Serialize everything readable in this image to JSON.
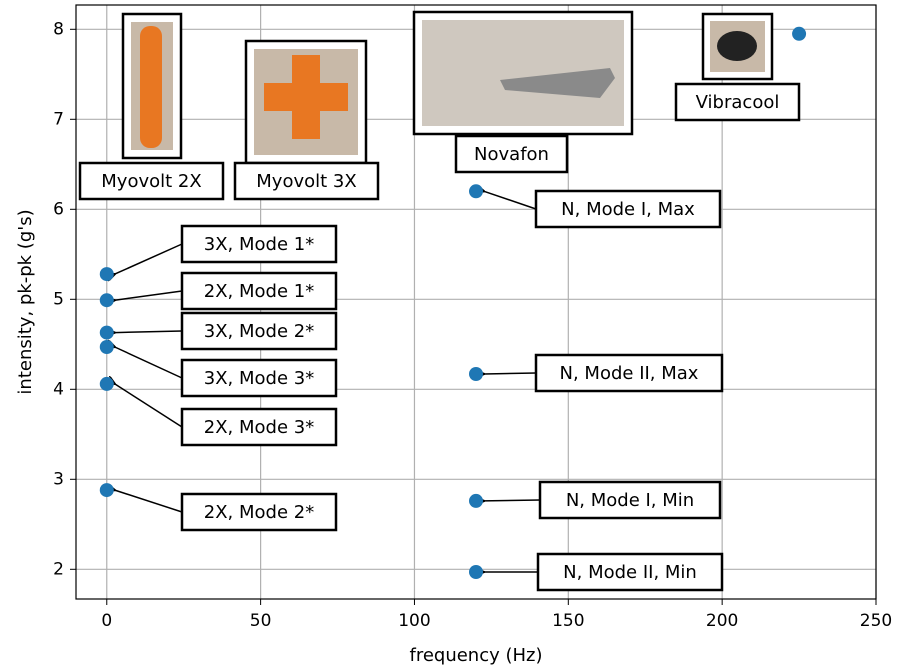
{
  "chart_data": {
    "type": "scatter",
    "x_label": "frequency (Hz)",
    "y_label": "intensity, pk-pk (g's)",
    "xlim": [
      -10,
      250
    ],
    "ylim": [
      1.67,
      8.27
    ],
    "xticks": [
      0,
      50,
      100,
      150,
      200,
      250
    ],
    "yticks": [
      2,
      3,
      4,
      5,
      6,
      7,
      8
    ],
    "grid": true,
    "color": "#1f77b4",
    "x": [
      0,
      0,
      0,
      0,
      0,
      0,
      120,
      120,
      120,
      120,
      225
    ],
    "y": [
      5.28,
      4.99,
      4.63,
      4.47,
      4.06,
      2.88,
      6.2,
      4.17,
      2.76,
      1.97,
      7.95
    ],
    "point_labels": [
      "3X, Mode 1*",
      "2X, Mode 1*",
      "3X, Mode 2*",
      "3X, Mode 3*",
      "2X, Mode 3*",
      "2X, Mode 2*",
      "N, Mode I, Max",
      "N, Mode II, Max",
      "N, Mode I, Min",
      "N, Mode II, Min",
      null
    ],
    "device_labels": [
      "Myovolt 2X",
      "Myovolt 3X",
      "Novafon",
      "Vibracool"
    ]
  }
}
